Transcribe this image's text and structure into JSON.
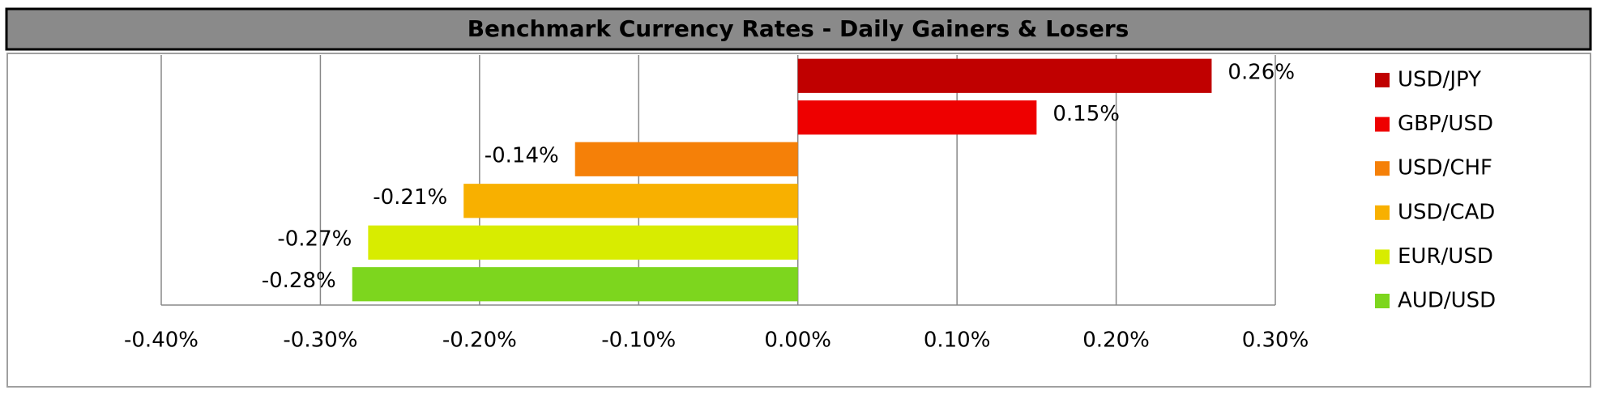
{
  "chart_data": {
    "type": "hbar",
    "title": "Benchmark Currency Rates - Daily Gainers & Losers",
    "categories": [
      "USD/JPY",
      "GBP/USD",
      "USD/CHF",
      "USD/CAD",
      "EUR/USD",
      "AUD/USD"
    ],
    "values": [
      0.26,
      0.15,
      -0.14,
      -0.21,
      -0.27,
      -0.28
    ],
    "value_labels": [
      "0.26%",
      "0.15%",
      "-0.14%",
      "-0.21%",
      "-0.27%",
      "-0.28%"
    ],
    "colors": [
      "#c00000",
      "#ee0000",
      "#f58008",
      "#f8b000",
      "#d8ec00",
      "#7dd61e"
    ],
    "xlim": [
      -0.4,
      0.3
    ],
    "xticks": [
      {
        "value": -0.4,
        "label": "-0.40%"
      },
      {
        "value": -0.3,
        "label": "-0.30%"
      },
      {
        "value": -0.2,
        "label": "-0.20%"
      },
      {
        "value": -0.1,
        "label": "-0.10%"
      },
      {
        "value": 0,
        "label": "0.00%"
      },
      {
        "value": 0.1,
        "label": "0.10%"
      },
      {
        "value": 0.2,
        "label": "0.20%"
      },
      {
        "value": 0.3,
        "label": "0.30%"
      }
    ],
    "grid": true,
    "legend": "right"
  }
}
